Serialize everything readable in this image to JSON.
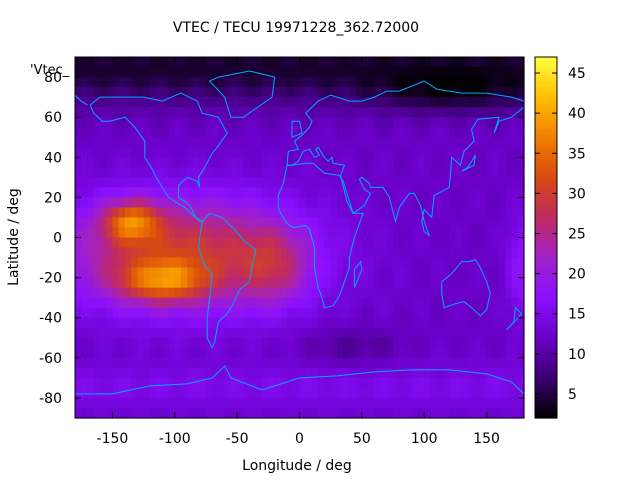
{
  "chart_data": {
    "type": "heatmap",
    "title": "VTEC / TECU 19971228_362.72000",
    "xlabel": "Longitude / deg",
    "ylabel": "Latitude / deg",
    "legend_key": "'Vtec_",
    "xlim": [
      -180,
      180
    ],
    "ylim": [
      -90,
      90
    ],
    "x_ticks": [
      -150,
      -100,
      -50,
      0,
      50,
      100,
      150
    ],
    "y_ticks": [
      80,
      60,
      40,
      20,
      0,
      -20,
      -40,
      -60,
      -80
    ],
    "colorbar": {
      "range": [
        2,
        47
      ],
      "ticks": [
        5,
        10,
        15,
        20,
        25,
        30,
        35,
        40,
        45
      ],
      "palette": [
        "#000000",
        "#3a0070",
        "#6a00c8",
        "#8a10ff",
        "#a020c8",
        "#c02a60",
        "#d84a10",
        "#f08000",
        "#ffc000",
        "#ffff40"
      ]
    },
    "coastline_color": "#00a8ff",
    "grid": false,
    "features": [
      {
        "name": "equatorial anomaly peak (Pacific)",
        "lon": -135,
        "lat": 8,
        "vtec": 46
      },
      {
        "name": "southern crest peak (Pacific/S. America)",
        "lon": -110,
        "lat": -22,
        "vtec": 44
      },
      {
        "name": "equatorial band over Atlantic",
        "lon": -20,
        "lat": -15,
        "vtec": 25
      },
      {
        "name": "Arctic night minimum",
        "lon": 120,
        "lat": 75,
        "vtec": 3
      },
      {
        "name": "Indian/Asian sector background",
        "lon": 90,
        "lat": 0,
        "vtec": 10
      },
      {
        "name": "Antarctic summer background",
        "lon": 0,
        "lat": -75,
        "vtec": 12
      }
    ]
  }
}
